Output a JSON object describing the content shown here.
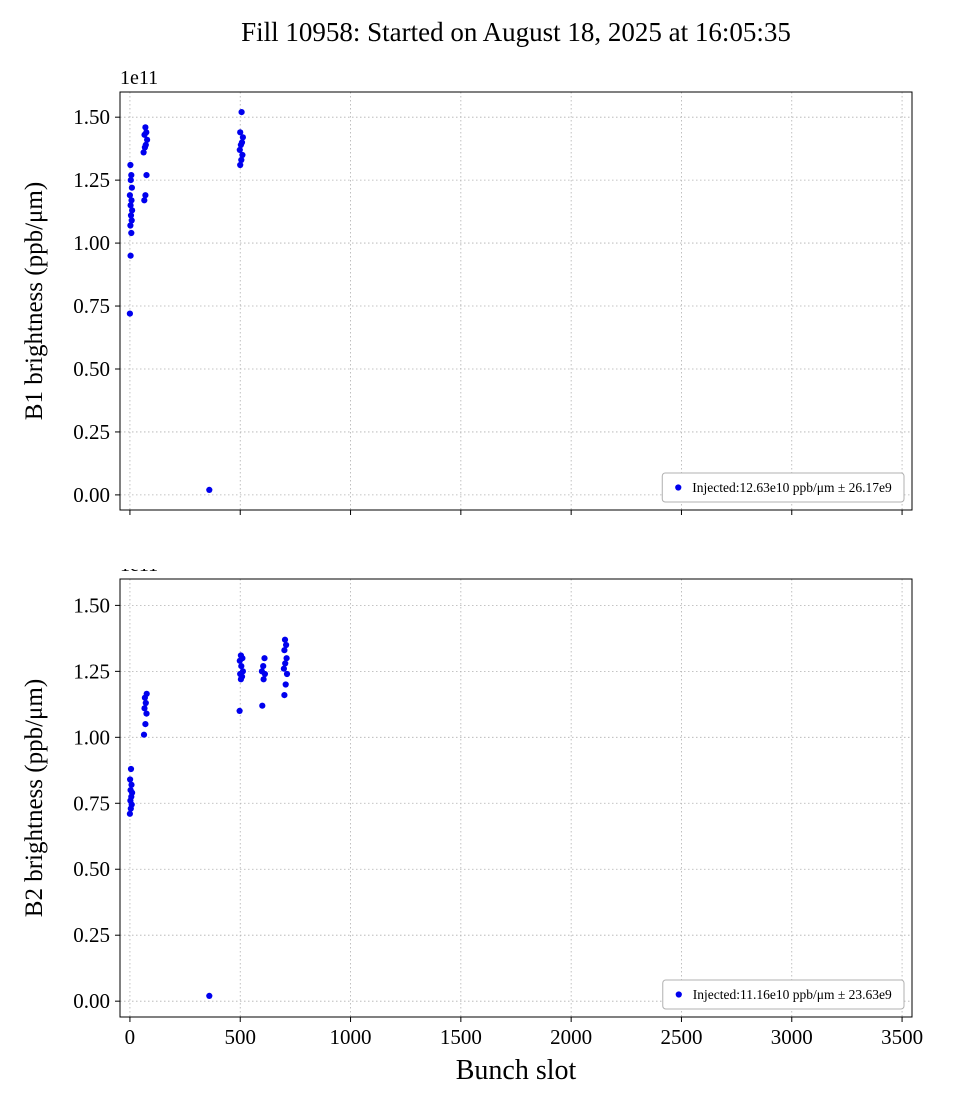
{
  "title": "Fill 10958: Started on August 18, 2025 at 16:05:35",
  "colors": {
    "marker": "#0000ee",
    "grid": "#b0b0b0",
    "spine": "#000000",
    "legend_border": "#b0b0b0"
  },
  "axes": {
    "xlabel": "Bunch slot",
    "offset_label": "1e11",
    "x_ticks": [
      0,
      500,
      1000,
      1500,
      2000,
      2500,
      3000,
      3500
    ],
    "y_ticks": [
      0.0,
      0.25,
      0.5,
      0.75,
      1.0,
      1.25,
      1.5
    ],
    "xlim": [
      -45,
      3545
    ],
    "ylim": [
      -0.06,
      1.6
    ],
    "grid": true,
    "legend_position": "lower right"
  },
  "chart_data": [
    {
      "type": "scatter",
      "name": "B1",
      "ylabel": "B1 brightness (ppb/μm)",
      "xlabel": "",
      "legend": "Injected:12.63e10 ppb/μm ± 26.17e9",
      "points": [
        [
          0,
          0.72
        ],
        [
          3,
          0.95
        ],
        [
          6,
          1.04
        ],
        [
          2,
          1.07
        ],
        [
          8,
          1.09
        ],
        [
          5,
          1.11
        ],
        [
          10,
          1.13
        ],
        [
          3,
          1.15
        ],
        [
          7,
          1.17
        ],
        [
          0,
          1.19
        ],
        [
          9,
          1.22
        ],
        [
          4,
          1.25
        ],
        [
          6,
          1.27
        ],
        [
          2,
          1.31
        ],
        [
          65,
          1.17
        ],
        [
          70,
          1.19
        ],
        [
          75,
          1.27
        ],
        [
          62,
          1.36
        ],
        [
          68,
          1.38
        ],
        [
          72,
          1.39
        ],
        [
          78,
          1.41
        ],
        [
          66,
          1.43
        ],
        [
          74,
          1.44
        ],
        [
          70,
          1.46
        ],
        [
          360,
          0.02
        ],
        [
          500,
          1.31
        ],
        [
          505,
          1.33
        ],
        [
          510,
          1.35
        ],
        [
          498,
          1.37
        ],
        [
          503,
          1.39
        ],
        [
          508,
          1.4
        ],
        [
          512,
          1.42
        ],
        [
          500,
          1.44
        ],
        [
          506,
          1.52
        ]
      ]
    },
    {
      "type": "scatter",
      "name": "B2",
      "ylabel": "B2 brightness (ppb/μm)",
      "xlabel": "Bunch slot",
      "legend": "Injected:11.16e10 ppb/μm ± 23.63e9",
      "points": [
        [
          0,
          0.71
        ],
        [
          4,
          0.73
        ],
        [
          8,
          0.745
        ],
        [
          2,
          0.76
        ],
        [
          6,
          0.775
        ],
        [
          10,
          0.79
        ],
        [
          3,
          0.8
        ],
        [
          7,
          0.82
        ],
        [
          1,
          0.84
        ],
        [
          5,
          0.88
        ],
        [
          64,
          1.01
        ],
        [
          70,
          1.05
        ],
        [
          75,
          1.09
        ],
        [
          66,
          1.11
        ],
        [
          72,
          1.13
        ],
        [
          68,
          1.15
        ],
        [
          76,
          1.165
        ],
        [
          360,
          0.02
        ],
        [
          497,
          1.1
        ],
        [
          503,
          1.22
        ],
        [
          508,
          1.23
        ],
        [
          500,
          1.24
        ],
        [
          512,
          1.25
        ],
        [
          505,
          1.27
        ],
        [
          498,
          1.29
        ],
        [
          510,
          1.3
        ],
        [
          503,
          1.31
        ],
        [
          600,
          1.12
        ],
        [
          606,
          1.22
        ],
        [
          612,
          1.24
        ],
        [
          598,
          1.25
        ],
        [
          604,
          1.27
        ],
        [
          610,
          1.3
        ],
        [
          700,
          1.16
        ],
        [
          706,
          1.2
        ],
        [
          712,
          1.24
        ],
        [
          698,
          1.26
        ],
        [
          704,
          1.28
        ],
        [
          710,
          1.3
        ],
        [
          700,
          1.33
        ],
        [
          708,
          1.35
        ],
        [
          703,
          1.37
        ]
      ]
    }
  ]
}
